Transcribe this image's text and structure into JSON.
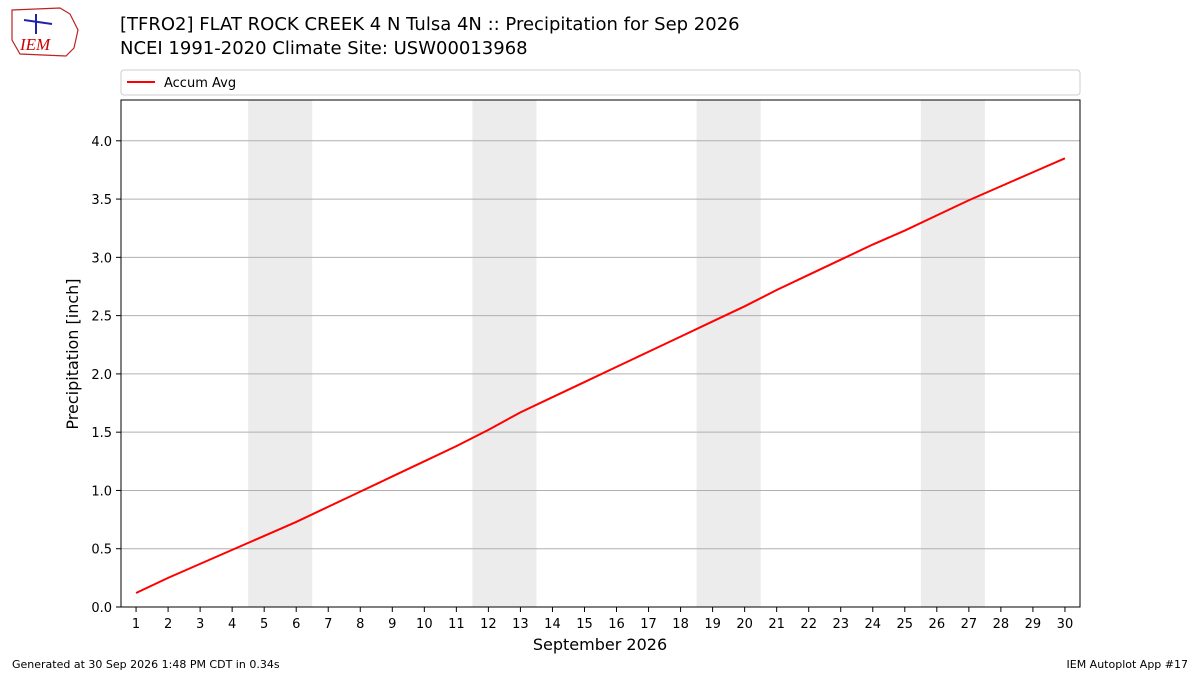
{
  "logo_text": "IEM",
  "footer_left": "Generated at 30 Sep 2026 1:48 PM CDT in 0.34s",
  "footer_right": "IEM Autoplot App #17",
  "chart_data": {
    "type": "line",
    "title": "[TFRO2] FLAT ROCK CREEK 4 N Tulsa 4N :: Precipitation for Sep 2026",
    "subtitle": "NCEI 1991-2020 Climate Site: USW00013968",
    "x_label": "September 2026",
    "y_label": "Precipitation [inch]",
    "x": [
      1,
      2,
      3,
      4,
      5,
      6,
      7,
      8,
      9,
      10,
      11,
      12,
      13,
      14,
      15,
      16,
      17,
      18,
      19,
      20,
      21,
      22,
      23,
      24,
      25,
      26,
      27,
      28,
      29,
      30
    ],
    "series": [
      {
        "name": "Accum Avg",
        "color": "#ff0000",
        "values": [
          0.12,
          0.25,
          0.37,
          0.49,
          0.61,
          0.73,
          0.86,
          0.99,
          1.12,
          1.25,
          1.38,
          1.52,
          1.67,
          1.8,
          1.93,
          2.06,
          2.19,
          2.32,
          2.45,
          2.58,
          2.72,
          2.85,
          2.98,
          3.11,
          3.23,
          3.36,
          3.49,
          3.61,
          3.73,
          3.85
        ]
      }
    ],
    "xlim": [
      0.53,
      30.47
    ],
    "ylim": [
      0,
      4.35
    ],
    "xticks": [
      1,
      2,
      3,
      4,
      5,
      6,
      7,
      8,
      9,
      10,
      11,
      12,
      13,
      14,
      15,
      16,
      17,
      18,
      19,
      20,
      21,
      22,
      23,
      24,
      25,
      26,
      27,
      28,
      29,
      30
    ],
    "yticks": [
      {
        "value": 0,
        "label": "0.0"
      },
      0.5,
      {
        "value": 1,
        "label": "1.0"
      },
      1.5,
      {
        "value": 2,
        "label": "2.0"
      },
      2.5,
      {
        "value": 3,
        "label": "3.0"
      },
      3.5,
      {
        "value": 4,
        "label": "4.0"
      }
    ],
    "shaded_spans": [
      [
        4.5,
        6.5
      ],
      [
        11.5,
        13.5
      ],
      [
        18.5,
        20.5
      ],
      [
        25.5,
        27.5
      ]
    ],
    "shade_color": "#ececec",
    "grid": true,
    "grid_axis": "y"
  }
}
